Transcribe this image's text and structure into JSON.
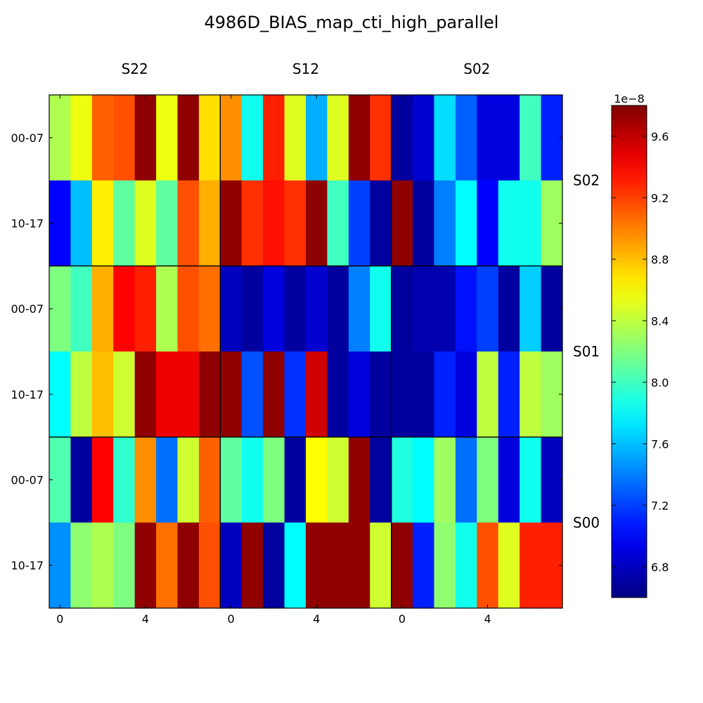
{
  "chart_data": {
    "type": "heatmap",
    "title": "4986D_BIAS_map_cti_high_parallel",
    "colormap": "jet",
    "column_groups": [
      "S22",
      "S12",
      "S02"
    ],
    "row_groups": [
      "S02",
      "S01",
      "S00"
    ],
    "row_tick_labels": [
      "00-07",
      "10-17",
      "00-07",
      "10-17",
      "00-07",
      "10-17"
    ],
    "x_tick_labels": [
      {
        "col": 0,
        "label": "0"
      },
      {
        "col": 4,
        "label": "4"
      },
      {
        "col": 8,
        "label": "0"
      },
      {
        "col": 12,
        "label": "4"
      },
      {
        "col": 16,
        "label": "0"
      },
      {
        "col": 20,
        "label": "4"
      }
    ],
    "colorbar": {
      "vmin": 6.6,
      "vmax": 9.8,
      "ticks": [
        6.8,
        7.2,
        7.6,
        8.0,
        8.4,
        8.8,
        9.2,
        9.6
      ],
      "tick_labels": [
        "6.8",
        "7.2",
        "7.6",
        "8.0",
        "8.4",
        "8.8",
        "9.2",
        "9.6"
      ],
      "multiplier": "1e−8"
    },
    "values_unit_scale": "1e-8",
    "values": [
      [
        8.35,
        8.55,
        9.1,
        9.15,
        9.75,
        8.55,
        9.75,
        8.7,
        8.95,
        7.85,
        9.3,
        8.5,
        7.55,
        8.5,
        9.75,
        9.25,
        6.7,
        6.85,
        7.7,
        7.3,
        6.9,
        6.9,
        8.0,
        7.1
      ],
      [
        7.0,
        7.6,
        8.65,
        8.1,
        8.5,
        8.1,
        9.15,
        8.85,
        9.75,
        9.25,
        9.35,
        9.25,
        9.75,
        8.0,
        7.2,
        6.7,
        9.75,
        6.7,
        7.4,
        7.8,
        7.0,
        7.85,
        7.85,
        8.3
      ],
      [
        8.2,
        8.0,
        8.85,
        9.4,
        9.3,
        8.35,
        9.15,
        9.05,
        6.8,
        6.7,
        6.9,
        6.7,
        6.85,
        6.7,
        7.4,
        7.85,
        6.7,
        6.75,
        6.75,
        7.05,
        7.2,
        6.7,
        7.65,
        6.7
      ],
      [
        7.8,
        8.4,
        8.8,
        8.45,
        9.75,
        9.45,
        9.45,
        9.75,
        9.75,
        7.25,
        9.75,
        7.15,
        9.55,
        6.7,
        6.9,
        6.7,
        6.7,
        6.7,
        7.1,
        6.9,
        8.4,
        7.1,
        8.4,
        8.3
      ],
      [
        8.05,
        6.7,
        9.4,
        7.95,
        8.95,
        7.35,
        8.45,
        9.1,
        8.1,
        7.85,
        8.2,
        6.7,
        8.6,
        8.45,
        9.75,
        6.7,
        7.9,
        7.8,
        8.3,
        7.35,
        8.2,
        6.9,
        7.85,
        6.8
      ],
      [
        7.45,
        8.25,
        8.35,
        8.2,
        9.75,
        9.05,
        9.75,
        9.15,
        6.8,
        9.75,
        6.7,
        7.8,
        9.75,
        9.75,
        9.75,
        8.45,
        9.75,
        7.1,
        8.25,
        7.85,
        9.15,
        8.5,
        9.3,
        9.3
      ]
    ]
  }
}
